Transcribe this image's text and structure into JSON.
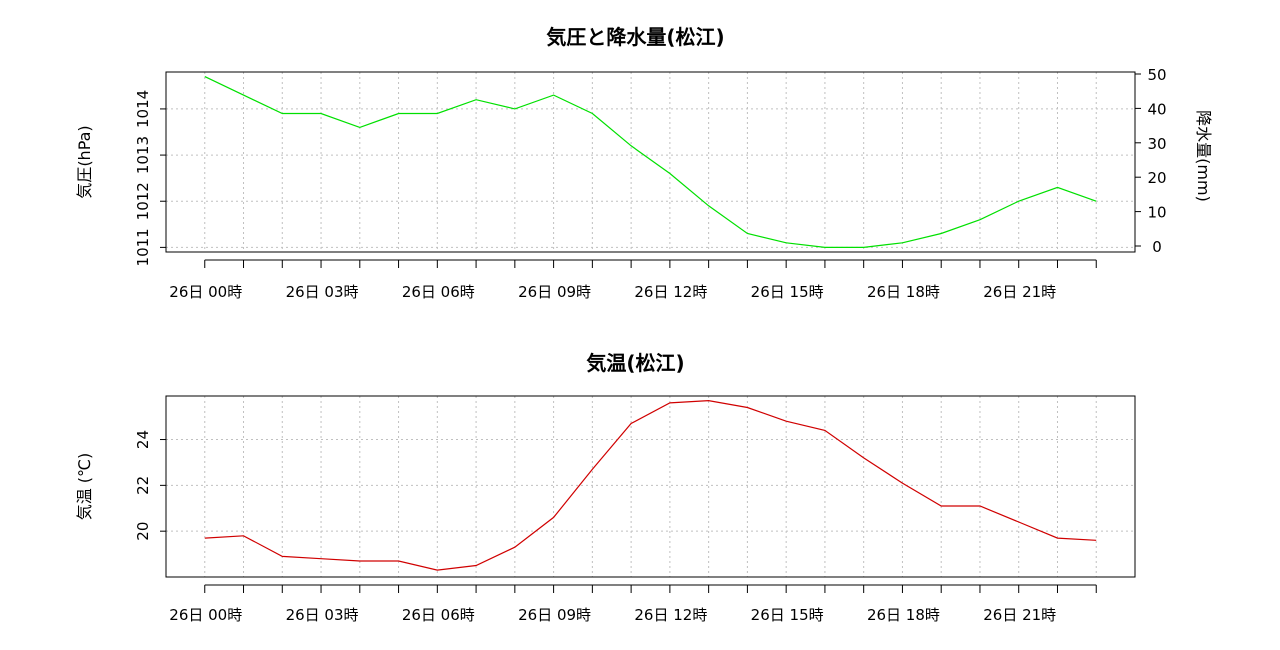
{
  "chart_data": [
    {
      "type": "line",
      "title": "気圧と降水量(松江)",
      "ylabel": "気圧(hPa)",
      "y2label": "降水量(mm)",
      "ylim": [
        1010.9,
        1014.8
      ],
      "y_ticks": [
        1011,
        1012,
        1013,
        1014
      ],
      "y2lim": [
        0,
        50
      ],
      "y2_ticks": [
        0,
        10,
        20,
        30,
        40,
        50
      ],
      "xlim": [
        -1,
        24
      ],
      "x_label_positions": [
        0,
        3,
        6,
        9,
        12,
        15,
        18,
        21
      ],
      "x_tick_labels": [
        "26日  00時",
        "26日  03時",
        "26日  06時",
        "26日  09時",
        "26日  12時",
        "26日  15時",
        "26日  18時",
        "26日  21時"
      ],
      "grid": true,
      "series": [
        {
          "color": "#00e000",
          "x": [
            0,
            1,
            2,
            3,
            4,
            5,
            6,
            7,
            8,
            9,
            10,
            11,
            12,
            13,
            14,
            15,
            16,
            17,
            18,
            19,
            20,
            21,
            22,
            23
          ],
          "values": [
            1014.7,
            1014.3,
            1013.9,
            1013.9,
            1013.6,
            1013.9,
            1013.9,
            1014.2,
            1014.0,
            1014.3,
            1013.9,
            1013.2,
            1012.6,
            1011.9,
            1011.3,
            1011.1,
            1011.0,
            1011.0,
            1011.1,
            1011.3,
            1011.6,
            1012.0,
            1012.3,
            1012.0
          ]
        }
      ]
    },
    {
      "type": "line",
      "title": "気温(松江)",
      "ylabel": "気温 (℃)",
      "ylim": [
        18.0,
        25.9
      ],
      "y_ticks": [
        20,
        22,
        24
      ],
      "xlim": [
        -1,
        24
      ],
      "x_label_positions": [
        0,
        3,
        6,
        9,
        12,
        15,
        18,
        21
      ],
      "x_tick_labels": [
        "26日  00時",
        "26日  03時",
        "26日  06時",
        "26日  09時",
        "26日  12時",
        "26日  15時",
        "26日  18時",
        "26日  21時"
      ],
      "grid": true,
      "series": [
        {
          "color": "#d00000",
          "x": [
            0,
            1,
            2,
            3,
            4,
            5,
            6,
            7,
            8,
            9,
            10,
            11,
            12,
            13,
            14,
            15,
            16,
            17,
            18,
            19,
            20,
            21,
            22,
            23
          ],
          "values": [
            19.7,
            19.8,
            18.9,
            18.8,
            18.7,
            18.7,
            18.3,
            18.5,
            19.3,
            20.6,
            22.7,
            24.7,
            25.6,
            25.7,
            25.4,
            24.8,
            24.4,
            23.2,
            22.1,
            21.1,
            21.1,
            20.4,
            19.7,
            19.6
          ]
        }
      ]
    }
  ]
}
